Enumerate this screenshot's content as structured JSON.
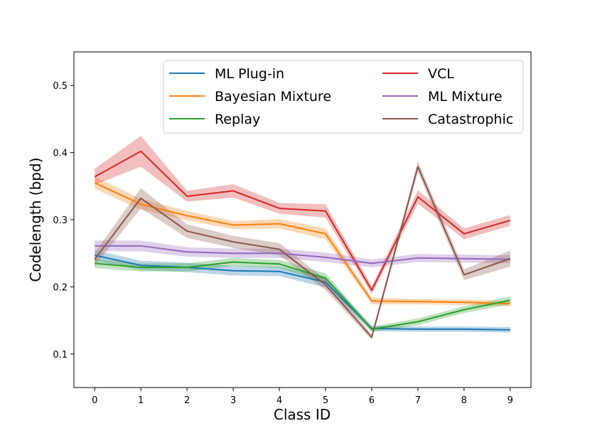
{
  "chart_data": {
    "type": "line",
    "title": "",
    "xlabel": "Class ID",
    "ylabel": "Codelength (bpd)",
    "x": [
      0,
      1,
      2,
      3,
      4,
      5,
      6,
      7,
      8,
      9
    ],
    "xlim": [
      -0.45,
      9.45
    ],
    "ylim": [
      0.05,
      0.55
    ],
    "xticks": [
      0,
      1,
      2,
      3,
      4,
      5,
      6,
      7,
      8,
      9
    ],
    "yticks": [
      0.1,
      0.2,
      0.3,
      0.4,
      0.5
    ],
    "legend_position": "top",
    "series": [
      {
        "name": "ML Plug-in",
        "color": "#1f77b4",
        "values": [
          0.247,
          0.232,
          0.229,
          0.224,
          0.223,
          0.207,
          0.138,
          0.137,
          0.137,
          0.136
        ],
        "band": [
          0.008,
          0.007,
          0.007,
          0.007,
          0.007,
          0.008,
          0.004,
          0.004,
          0.004,
          0.004
        ]
      },
      {
        "name": "Bayesian Mixture",
        "color": "#ff7f0e",
        "values": [
          0.355,
          0.323,
          0.306,
          0.292,
          0.294,
          0.279,
          0.179,
          0.178,
          0.177,
          0.175
        ],
        "band": [
          0.009,
          0.008,
          0.007,
          0.006,
          0.007,
          0.008,
          0.005,
          0.004,
          0.004,
          0.004
        ]
      },
      {
        "name": "Replay",
        "color": "#2ca02c",
        "values": [
          0.235,
          0.229,
          0.229,
          0.237,
          0.234,
          0.213,
          0.137,
          0.148,
          0.166,
          0.18
        ],
        "band": [
          0.007,
          0.006,
          0.006,
          0.006,
          0.006,
          0.007,
          0.004,
          0.005,
          0.005,
          0.006
        ]
      },
      {
        "name": "VCL",
        "color": "#d62728",
        "values": [
          0.364,
          0.402,
          0.335,
          0.343,
          0.317,
          0.313,
          0.195,
          0.334,
          0.279,
          0.299
        ],
        "band": [
          0.012,
          0.023,
          0.008,
          0.01,
          0.008,
          0.01,
          0.006,
          0.01,
          0.008,
          0.008
        ]
      },
      {
        "name": "ML Mixture",
        "color": "#9467bd",
        "values": [
          0.261,
          0.261,
          0.252,
          0.25,
          0.25,
          0.244,
          0.235,
          0.243,
          0.242,
          0.241
        ],
        "band": [
          0.008,
          0.008,
          0.007,
          0.007,
          0.007,
          0.007,
          0.006,
          0.006,
          0.006,
          0.006
        ]
      },
      {
        "name": "Catastrophic",
        "color": "#8c564b",
        "values": [
          0.241,
          0.332,
          0.283,
          0.267,
          0.256,
          0.203,
          0.125,
          0.379,
          0.218,
          0.242
        ],
        "band": [
          0.01,
          0.015,
          0.01,
          0.009,
          0.009,
          0.008,
          0.004,
          0.008,
          0.008,
          0.012
        ]
      }
    ]
  }
}
